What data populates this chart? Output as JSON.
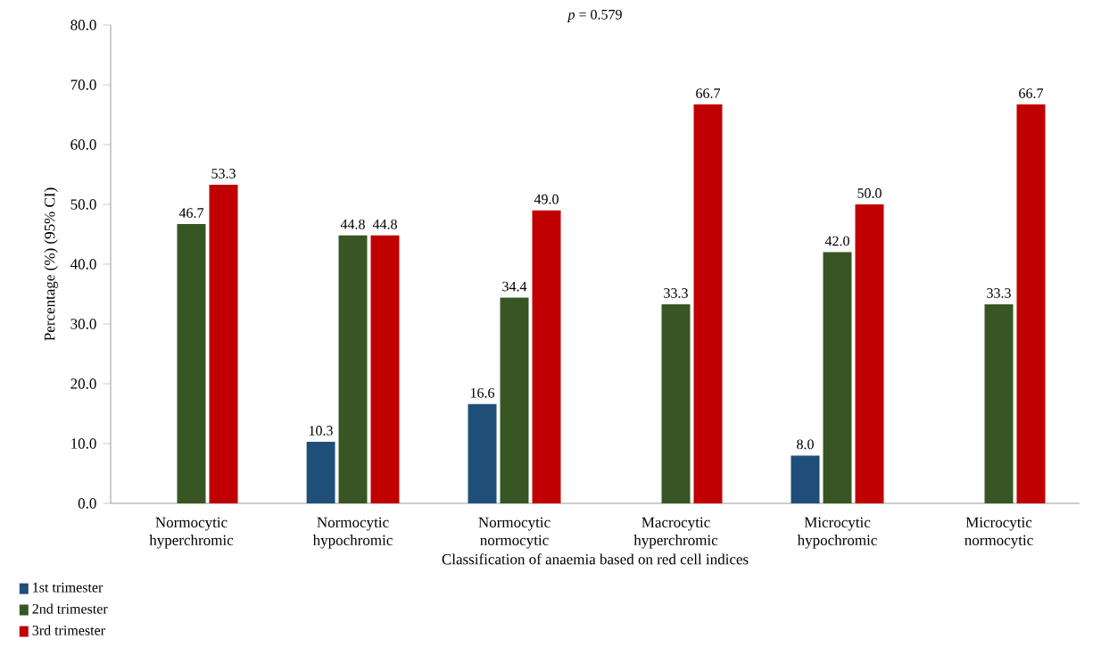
{
  "chart_data": {
    "type": "bar",
    "title": "*p* = 0.579",
    "xlabel": "Classification of anaemia based on red cell indices",
    "ylabel": "Percentage (%) (95% CI)",
    "categories": [
      "Normocytic hyperchromic",
      "Normocytic hypochromic",
      "Normocytic normocytic",
      "Macrocytic hyperchromic",
      "Microcytic hypochromic",
      "Microcytic normocytic"
    ],
    "series": [
      {
        "name": "1st trimester",
        "color": "#1f4e79",
        "values": [
          null,
          10.3,
          16.6,
          null,
          8.0,
          null
        ],
        "value_labels": [
          null,
          "10.3",
          "16.6",
          null,
          "8.0",
          null
        ]
      },
      {
        "name": "2nd trimester",
        "color": "#375623",
        "values": [
          46.7,
          44.8,
          34.4,
          33.3,
          42.0,
          33.3
        ],
        "value_labels": [
          "46.7",
          "44.8",
          "34.4",
          "33.3",
          "42.0",
          "33.3"
        ]
      },
      {
        "name": "3rd trimester",
        "color": "#c00000",
        "values": [
          53.3,
          44.8,
          49.0,
          66.7,
          50.0,
          66.7
        ],
        "value_labels": [
          "53.3",
          "44.8",
          "49.0",
          "66.7",
          "50.0",
          "66.7"
        ]
      }
    ],
    "ylim": [
      0,
      80
    ],
    "yticks": [
      {
        "value": 0,
        "label": "0.0"
      },
      {
        "value": 10,
        "label": "10.0"
      },
      {
        "value": 20,
        "label": "20.0"
      },
      {
        "value": 30,
        "label": "30.0"
      },
      {
        "value": 40,
        "label": "40.0"
      },
      {
        "value": 50,
        "label": "50.0"
      },
      {
        "value": 60,
        "label": "60.0"
      },
      {
        "value": 70,
        "label": "70.0"
      },
      {
        "value": 80,
        "label": "80.0"
      }
    ],
    "legend": "bottom left",
    "grid": false
  }
}
